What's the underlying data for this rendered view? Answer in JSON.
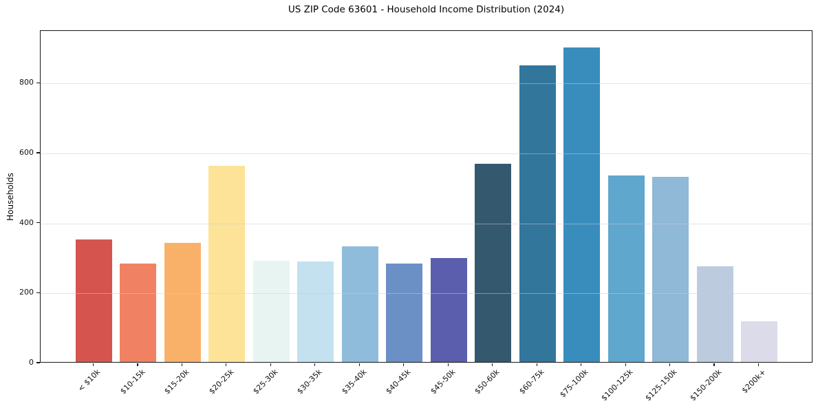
{
  "chart_data": {
    "type": "bar",
    "title": "US ZIP Code 63601 - Household Income Distribution (2024)",
    "xlabel": "",
    "ylabel": "Households",
    "categories": [
      "< $10k",
      "$10-15k",
      "$15-20k",
      "$20-25k",
      "$25-30k",
      "$30-35k",
      "$35-40k",
      "$40-45k",
      "$45-50k",
      "$50-60k",
      "$60-75k",
      "$75-100k",
      "$100-125k",
      "$125-150k",
      "$150-200k",
      "$200k+"
    ],
    "values": [
      355,
      286,
      345,
      564,
      294,
      292,
      335,
      285,
      300,
      570,
      852,
      903,
      537,
      533,
      277,
      120
    ],
    "bar_colors": [
      "#d5554e",
      "#f08263",
      "#f9b169",
      "#fce398",
      "#e7f4f2",
      "#c3e1ee",
      "#90bcdc",
      "#6a90c5",
      "#5a5ead",
      "#34596e",
      "#32769c",
      "#398dbd",
      "#60a7ce",
      "#90b8d7",
      "#bdcbdf",
      "#dbdbe9"
    ],
    "yticks": [
      0,
      200,
      400,
      600,
      800
    ],
    "ylim": [
      0,
      950
    ],
    "grid": "horizontal-light",
    "legend": "none"
  }
}
